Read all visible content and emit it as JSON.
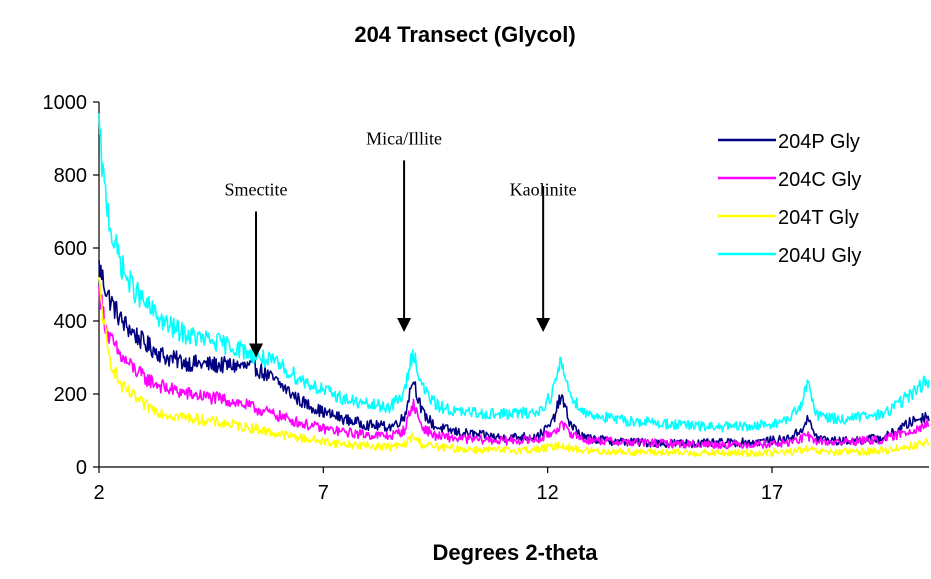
{
  "chart_data": {
    "type": "line",
    "title": "204 Transect (Glycol)",
    "xlabel": "Degrees 2-theta",
    "ylabel": "",
    "xlim": [
      2,
      20.5
    ],
    "ylim": [
      0,
      1000
    ],
    "x_ticks": [
      {
        "value": 2,
        "label": "2"
      },
      {
        "value": 7,
        "label": "7"
      },
      {
        "value": 12,
        "label": "12"
      },
      {
        "value": 17,
        "label": "17"
      }
    ],
    "y_ticks": [
      {
        "value": 0,
        "label": "0"
      },
      {
        "value": 200,
        "label": "200"
      },
      {
        "value": 400,
        "label": "400"
      },
      {
        "value": 600,
        "label": "600"
      },
      {
        "value": 800,
        "label": "800"
      },
      {
        "value": 1000,
        "label": "1000"
      }
    ],
    "grid": false,
    "legend_position": "top-right",
    "series": [
      {
        "name": "204P Gly",
        "color": "#000080",
        "x": [
          2.0,
          2.2,
          2.5,
          3.0,
          3.5,
          4.0,
          4.5,
          5.0,
          5.5,
          6.0,
          6.5,
          7.0,
          7.5,
          8.0,
          8.5,
          8.8,
          9.0,
          9.2,
          9.5,
          10.0,
          11.0,
          11.8,
          12.1,
          12.3,
          12.5,
          12.8,
          13.5,
          14.5,
          15.5,
          16.5,
          17.3,
          17.6,
          17.8,
          18.0,
          18.5,
          19.5,
          20.2,
          20.5
        ],
        "y": [
          550,
          470,
          400,
          340,
          300,
          285,
          280,
          278,
          272,
          230,
          180,
          150,
          130,
          115,
          110,
          135,
          245,
          150,
          110,
          95,
          80,
          85,
          120,
          195,
          120,
          80,
          70,
          65,
          65,
          68,
          75,
          95,
          130,
          80,
          70,
          80,
          130,
          140
        ]
      },
      {
        "name": "204C Gly",
        "color": "#ff00ff",
        "x": [
          2.0,
          2.2,
          2.5,
          3.0,
          3.5,
          4.0,
          4.5,
          5.0,
          5.5,
          6.0,
          6.5,
          7.0,
          7.5,
          8.0,
          8.5,
          8.8,
          9.0,
          9.2,
          9.5,
          10.0,
          11.0,
          11.8,
          12.1,
          12.3,
          12.5,
          12.8,
          13.5,
          14.5,
          15.5,
          16.5,
          17.3,
          17.6,
          17.8,
          18.0,
          18.5,
          19.5,
          20.2,
          20.5
        ],
        "y": [
          480,
          360,
          300,
          245,
          215,
          200,
          190,
          180,
          160,
          140,
          120,
          105,
          95,
          88,
          85,
          100,
          175,
          110,
          85,
          78,
          72,
          75,
          95,
          115,
          95,
          75,
          70,
          65,
          62,
          62,
          65,
          75,
          85,
          70,
          68,
          75,
          105,
          120
        ]
      },
      {
        "name": "204T Gly",
        "color": "#ffff00",
        "x": [
          2.0,
          2.2,
          2.5,
          3.0,
          3.5,
          4.0,
          4.5,
          5.0,
          5.5,
          6.0,
          6.5,
          7.0,
          7.5,
          8.0,
          8.5,
          8.8,
          9.0,
          9.2,
          9.5,
          10.0,
          11.0,
          11.8,
          12.1,
          12.3,
          12.5,
          12.8,
          13.5,
          14.5,
          15.5,
          16.5,
          17.3,
          17.6,
          17.8,
          18.0,
          18.5,
          19.5,
          20.2,
          20.5
        ],
        "y": [
          500,
          310,
          220,
          170,
          145,
          135,
          125,
          115,
          105,
          90,
          80,
          70,
          62,
          58,
          55,
          60,
          85,
          62,
          55,
          50,
          45,
          48,
          55,
          60,
          52,
          45,
          42,
          40,
          38,
          38,
          40,
          45,
          48,
          42,
          40,
          45,
          60,
          70
        ]
      },
      {
        "name": "204U Gly",
        "color": "#00ffff",
        "x": [
          2.0,
          2.1,
          2.3,
          2.6,
          3.0,
          3.5,
          4.0,
          4.5,
          5.0,
          5.5,
          6.0,
          6.5,
          7.0,
          7.5,
          8.0,
          8.5,
          8.8,
          9.0,
          9.2,
          9.5,
          10.0,
          11.0,
          11.8,
          12.1,
          12.3,
          12.5,
          12.8,
          13.5,
          14.5,
          15.5,
          16.5,
          17.3,
          17.6,
          17.8,
          18.0,
          18.5,
          19.5,
          20.2,
          20.5
        ],
        "y": [
          930,
          780,
          630,
          520,
          450,
          390,
          360,
          345,
          330,
          305,
          280,
          240,
          210,
          185,
          170,
          165,
          200,
          320,
          220,
          170,
          150,
          145,
          150,
          200,
          290,
          200,
          150,
          130,
          120,
          110,
          110,
          125,
          160,
          225,
          145,
          130,
          145,
          210,
          240
        ]
      }
    ],
    "annotations": [
      {
        "label": "Smectite",
        "x": 5.5,
        "y_tip": 300,
        "y_top": 700,
        "label_y": 760
      },
      {
        "label": "Mica/Illite",
        "x": 8.8,
        "y_tip": 370,
        "y_top": 840,
        "label_y": 900
      },
      {
        "label": "Kaolinite",
        "x": 11.9,
        "y_tip": 370,
        "y_top": 770,
        "label_y": 760
      }
    ]
  }
}
